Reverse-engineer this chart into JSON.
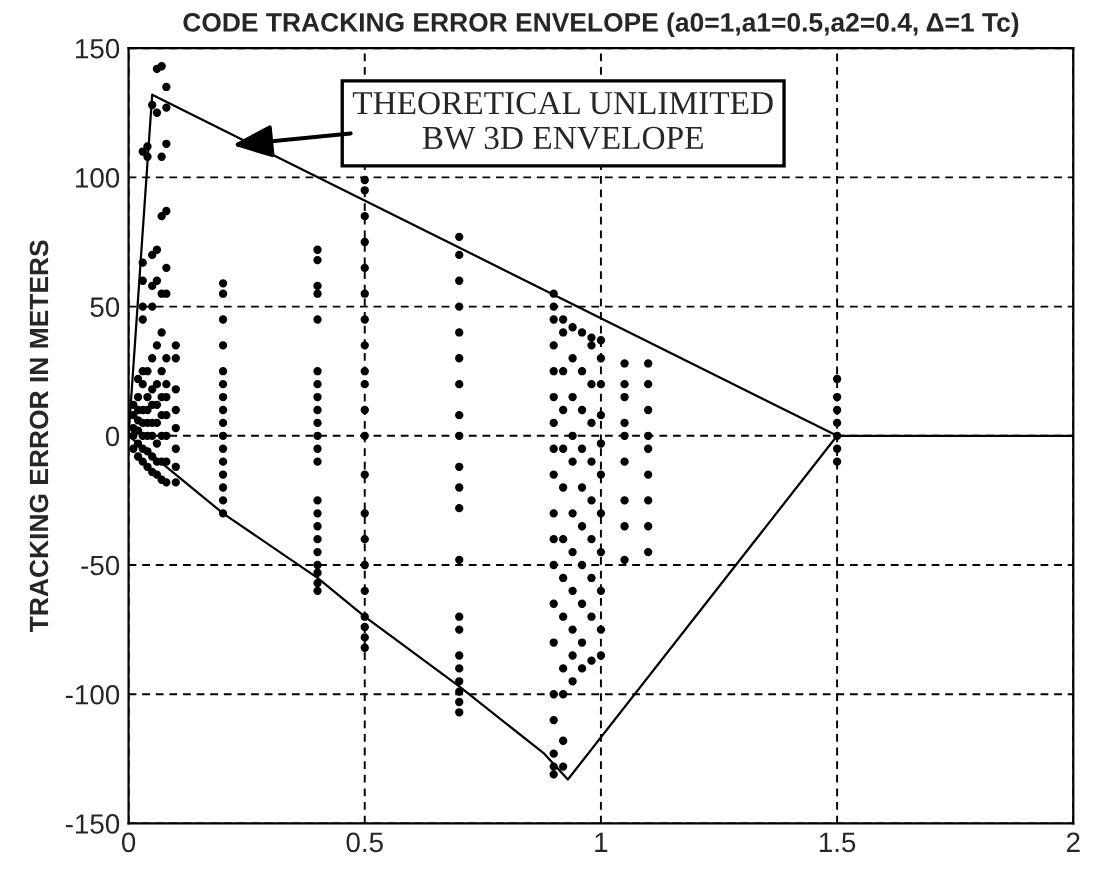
{
  "chart_data": {
    "type": "scatter",
    "title": "CODE TRACKING ERROR ENVELOPE (a0=1,a1=0.5,a2=0.4, Δ=1 Tc)",
    "ylabel": "TRACKING ERROR IN METERS",
    "xlim": [
      0,
      2
    ],
    "xticks": [
      0,
      0.5,
      1,
      1.5,
      2
    ],
    "ylim": [
      -150,
      150
    ],
    "yticks": [
      -150,
      -100,
      -50,
      0,
      50,
      100,
      150
    ],
    "grid": true,
    "marker": "circle",
    "annotations": [
      "THEORETICAL UNLIMITED\nBW 3D ENVELOPE"
    ],
    "series": [
      {
        "type": "line",
        "color": "#000000",
        "marker": "none",
        "x": [
          0,
          0.05,
          1.5,
          2
        ],
        "values": [
          0,
          132,
          0,
          0
        ]
      },
      {
        "type": "line",
        "color": "#000000",
        "marker": "none",
        "x": [
          0,
          0.12,
          0.2,
          0.4,
          0.5,
          0.7,
          0.88,
          0.93,
          1.5
        ],
        "values": [
          0,
          -18,
          -30,
          -55,
          -70,
          -97,
          -123,
          -133,
          0
        ]
      },
      {
        "color": "#000000",
        "x": [
          0.01,
          0.01,
          0.01,
          0.01,
          0.01
        ],
        "values": [
          -5,
          0,
          3,
          8,
          12
        ]
      },
      {
        "color": "#000000",
        "x": [
          0.02,
          0.02,
          0.02,
          0.02,
          0.02,
          0.02,
          0.02
        ],
        "values": [
          -8,
          -3,
          2,
          6,
          10,
          15,
          22
        ]
      },
      {
        "color": "#000000",
        "x": [
          0.03,
          0.03,
          0.03,
          0.03,
          0.03,
          0.03,
          0.03,
          0.03,
          0.03,
          0.03,
          0.03,
          0.03
        ],
        "values": [
          -10,
          -5,
          0,
          5,
          10,
          20,
          25,
          45,
          50,
          60,
          67,
          110
        ]
      },
      {
        "color": "#000000",
        "x": [
          0.04,
          0.04,
          0.04,
          0.04,
          0.04,
          0.04,
          0.04,
          0.04,
          0.04
        ],
        "values": [
          -12,
          -6,
          0,
          5,
          10,
          15,
          25,
          108,
          112
        ]
      },
      {
        "color": "#000000",
        "x": [
          0.05,
          0.05,
          0.05,
          0.05,
          0.05,
          0.05,
          0.05,
          0.05,
          0.05,
          0.05,
          0.05
        ],
        "values": [
          -14,
          -8,
          0,
          5,
          12,
          18,
          30,
          50,
          58,
          70,
          128
        ]
      },
      {
        "color": "#000000",
        "x": [
          0.06,
          0.06,
          0.06,
          0.06,
          0.06,
          0.06,
          0.06,
          0.06,
          0.06,
          0.06,
          0.06
        ],
        "values": [
          -15,
          -10,
          -3,
          5,
          12,
          20,
          35,
          60,
          72,
          125,
          142
        ]
      },
      {
        "color": "#000000",
        "x": [
          0.07,
          0.07,
          0.07,
          0.07,
          0.07,
          0.07,
          0.07,
          0.07,
          0.07,
          0.07,
          0.07
        ],
        "values": [
          -17,
          -10,
          0,
          8,
          15,
          25,
          40,
          55,
          85,
          108,
          143
        ]
      },
      {
        "color": "#000000",
        "x": [
          0.08,
          0.08,
          0.08,
          0.08,
          0.08,
          0.08,
          0.08,
          0.08,
          0.08,
          0.08,
          0.08,
          0.08,
          0.08
        ],
        "values": [
          -18,
          -10,
          0,
          8,
          15,
          20,
          30,
          55,
          65,
          87,
          113,
          127,
          135
        ]
      },
      {
        "color": "#000000",
        "x": [
          0.1,
          0.1,
          0.1,
          0.1,
          0.1,
          0.1,
          0.1,
          0.1
        ],
        "values": [
          -18,
          -12,
          -5,
          3,
          10,
          18,
          30,
          35
        ]
      },
      {
        "color": "#000000",
        "x": [
          0.2,
          0.2,
          0.2,
          0.2,
          0.2,
          0.2,
          0.2,
          0.2,
          0.2,
          0.2,
          0.2,
          0.2,
          0.2,
          0.2,
          0.2,
          0.2
        ],
        "values": [
          -30,
          -25,
          -20,
          -15,
          -10,
          -5,
          0,
          5,
          10,
          15,
          20,
          25,
          35,
          45,
          55,
          59
        ]
      },
      {
        "color": "#000000",
        "x": [
          0.4,
          0.4,
          0.4,
          0.4,
          0.4,
          0.4,
          0.4,
          0.4,
          0.4,
          0.4,
          0.4,
          0.4,
          0.4,
          0.4,
          0.4,
          0.4,
          0.4,
          0.4,
          0.4,
          0.4,
          0.4,
          0.4
        ],
        "values": [
          -60,
          -57,
          -53,
          -50,
          -45,
          -40,
          -35,
          -30,
          -25,
          -10,
          -5,
          0,
          5,
          10,
          15,
          20,
          25,
          45,
          55,
          58,
          68,
          72
        ]
      },
      {
        "color": "#000000",
        "x": [
          0.5,
          0.5,
          0.5,
          0.5,
          0.5,
          0.5,
          0.5,
          0.5,
          0.5,
          0.5,
          0.5,
          0.5,
          0.5,
          0.5,
          0.5,
          0.5,
          0.5,
          0.5,
          0.5,
          0.5,
          0.5
        ],
        "values": [
          -82,
          -78,
          -74,
          -70,
          -60,
          -50,
          -40,
          -30,
          -15,
          0,
          10,
          20,
          25,
          35,
          45,
          55,
          65,
          75,
          85,
          95,
          99
        ]
      },
      {
        "color": "#000000",
        "x": [
          0.7,
          0.7,
          0.7,
          0.7,
          0.7,
          0.7,
          0.7,
          0.7,
          0.7,
          0.7,
          0.7,
          0.7,
          0.7,
          0.7,
          0.7,
          0.7,
          0.7,
          0.7,
          0.7,
          0.7,
          0.7
        ],
        "values": [
          -107,
          -103,
          -99,
          -95,
          -90,
          -85,
          -75,
          -70,
          -48,
          -28,
          -20,
          -12,
          0,
          8,
          20,
          30,
          40,
          50,
          60,
          70,
          77
        ]
      },
      {
        "color": "#000000",
        "x": [
          0.9,
          0.9,
          0.9,
          0.9,
          0.9,
          0.9,
          0.9,
          0.9,
          0.9,
          0.9,
          0.9,
          0.9,
          0.9,
          0.9,
          0.9,
          0.9,
          0.9,
          0.9,
          0.9
        ],
        "values": [
          -131,
          -128,
          -123,
          -110,
          -100,
          -80,
          -65,
          -50,
          -40,
          -30,
          -15,
          -5,
          5,
          15,
          25,
          35,
          45,
          50,
          55
        ]
      },
      {
        "color": "#000000",
        "x": [
          0.92,
          0.92,
          0.92,
          0.92,
          0.92,
          0.92,
          0.92,
          0.92,
          0.92,
          0.92,
          0.92,
          0.92,
          0.92
        ],
        "values": [
          -128,
          -118,
          -100,
          -90,
          -70,
          -55,
          -40,
          -20,
          -5,
          10,
          25,
          40,
          45
        ]
      },
      {
        "color": "#000000",
        "x": [
          0.94,
          0.94,
          0.94,
          0.94,
          0.94,
          0.94,
          0.94,
          0.94,
          0.94,
          0.94,
          0.94
        ],
        "values": [
          -95,
          -85,
          -75,
          -60,
          -45,
          -30,
          -10,
          0,
          15,
          30,
          42
        ]
      },
      {
        "color": "#000000",
        "x": [
          0.96,
          0.96,
          0.96,
          0.96,
          0.96,
          0.96,
          0.96,
          0.96,
          0.96,
          0.96
        ],
        "values": [
          -90,
          -80,
          -65,
          -50,
          -35,
          -20,
          -5,
          10,
          25,
          40
        ]
      },
      {
        "color": "#000000",
        "x": [
          0.98,
          0.98,
          0.98,
          0.98,
          0.98,
          0.98,
          0.98,
          0.98,
          0.98,
          0.98
        ],
        "values": [
          -87,
          -70,
          -55,
          -40,
          -25,
          -10,
          5,
          20,
          35,
          38
        ]
      },
      {
        "color": "#000000",
        "x": [
          1.0,
          1.0,
          1.0,
          1.0,
          1.0,
          1.0,
          1.0,
          1.0,
          1.0,
          1.0,
          1.0
        ],
        "values": [
          -85,
          -75,
          -60,
          -45,
          -30,
          -15,
          -3,
          8,
          20,
          30,
          37
        ]
      },
      {
        "color": "#000000",
        "x": [
          1.05,
          1.05,
          1.05,
          1.05,
          1.05,
          1.05,
          1.05,
          1.05,
          1.05
        ],
        "values": [
          -48,
          -35,
          -25,
          -10,
          0,
          5,
          15,
          20,
          28
        ]
      },
      {
        "color": "#000000",
        "x": [
          1.1,
          1.1,
          1.1,
          1.1,
          1.1,
          1.1,
          1.1,
          1.1,
          1.1
        ],
        "values": [
          -45,
          -35,
          -25,
          -15,
          -5,
          0,
          10,
          20,
          28
        ]
      },
      {
        "color": "#000000",
        "x": [
          1.5,
          1.5,
          1.5,
          1.5,
          1.5,
          1.5,
          1.5
        ],
        "values": [
          -10,
          -5,
          0,
          5,
          10,
          15,
          22
        ]
      }
    ]
  }
}
